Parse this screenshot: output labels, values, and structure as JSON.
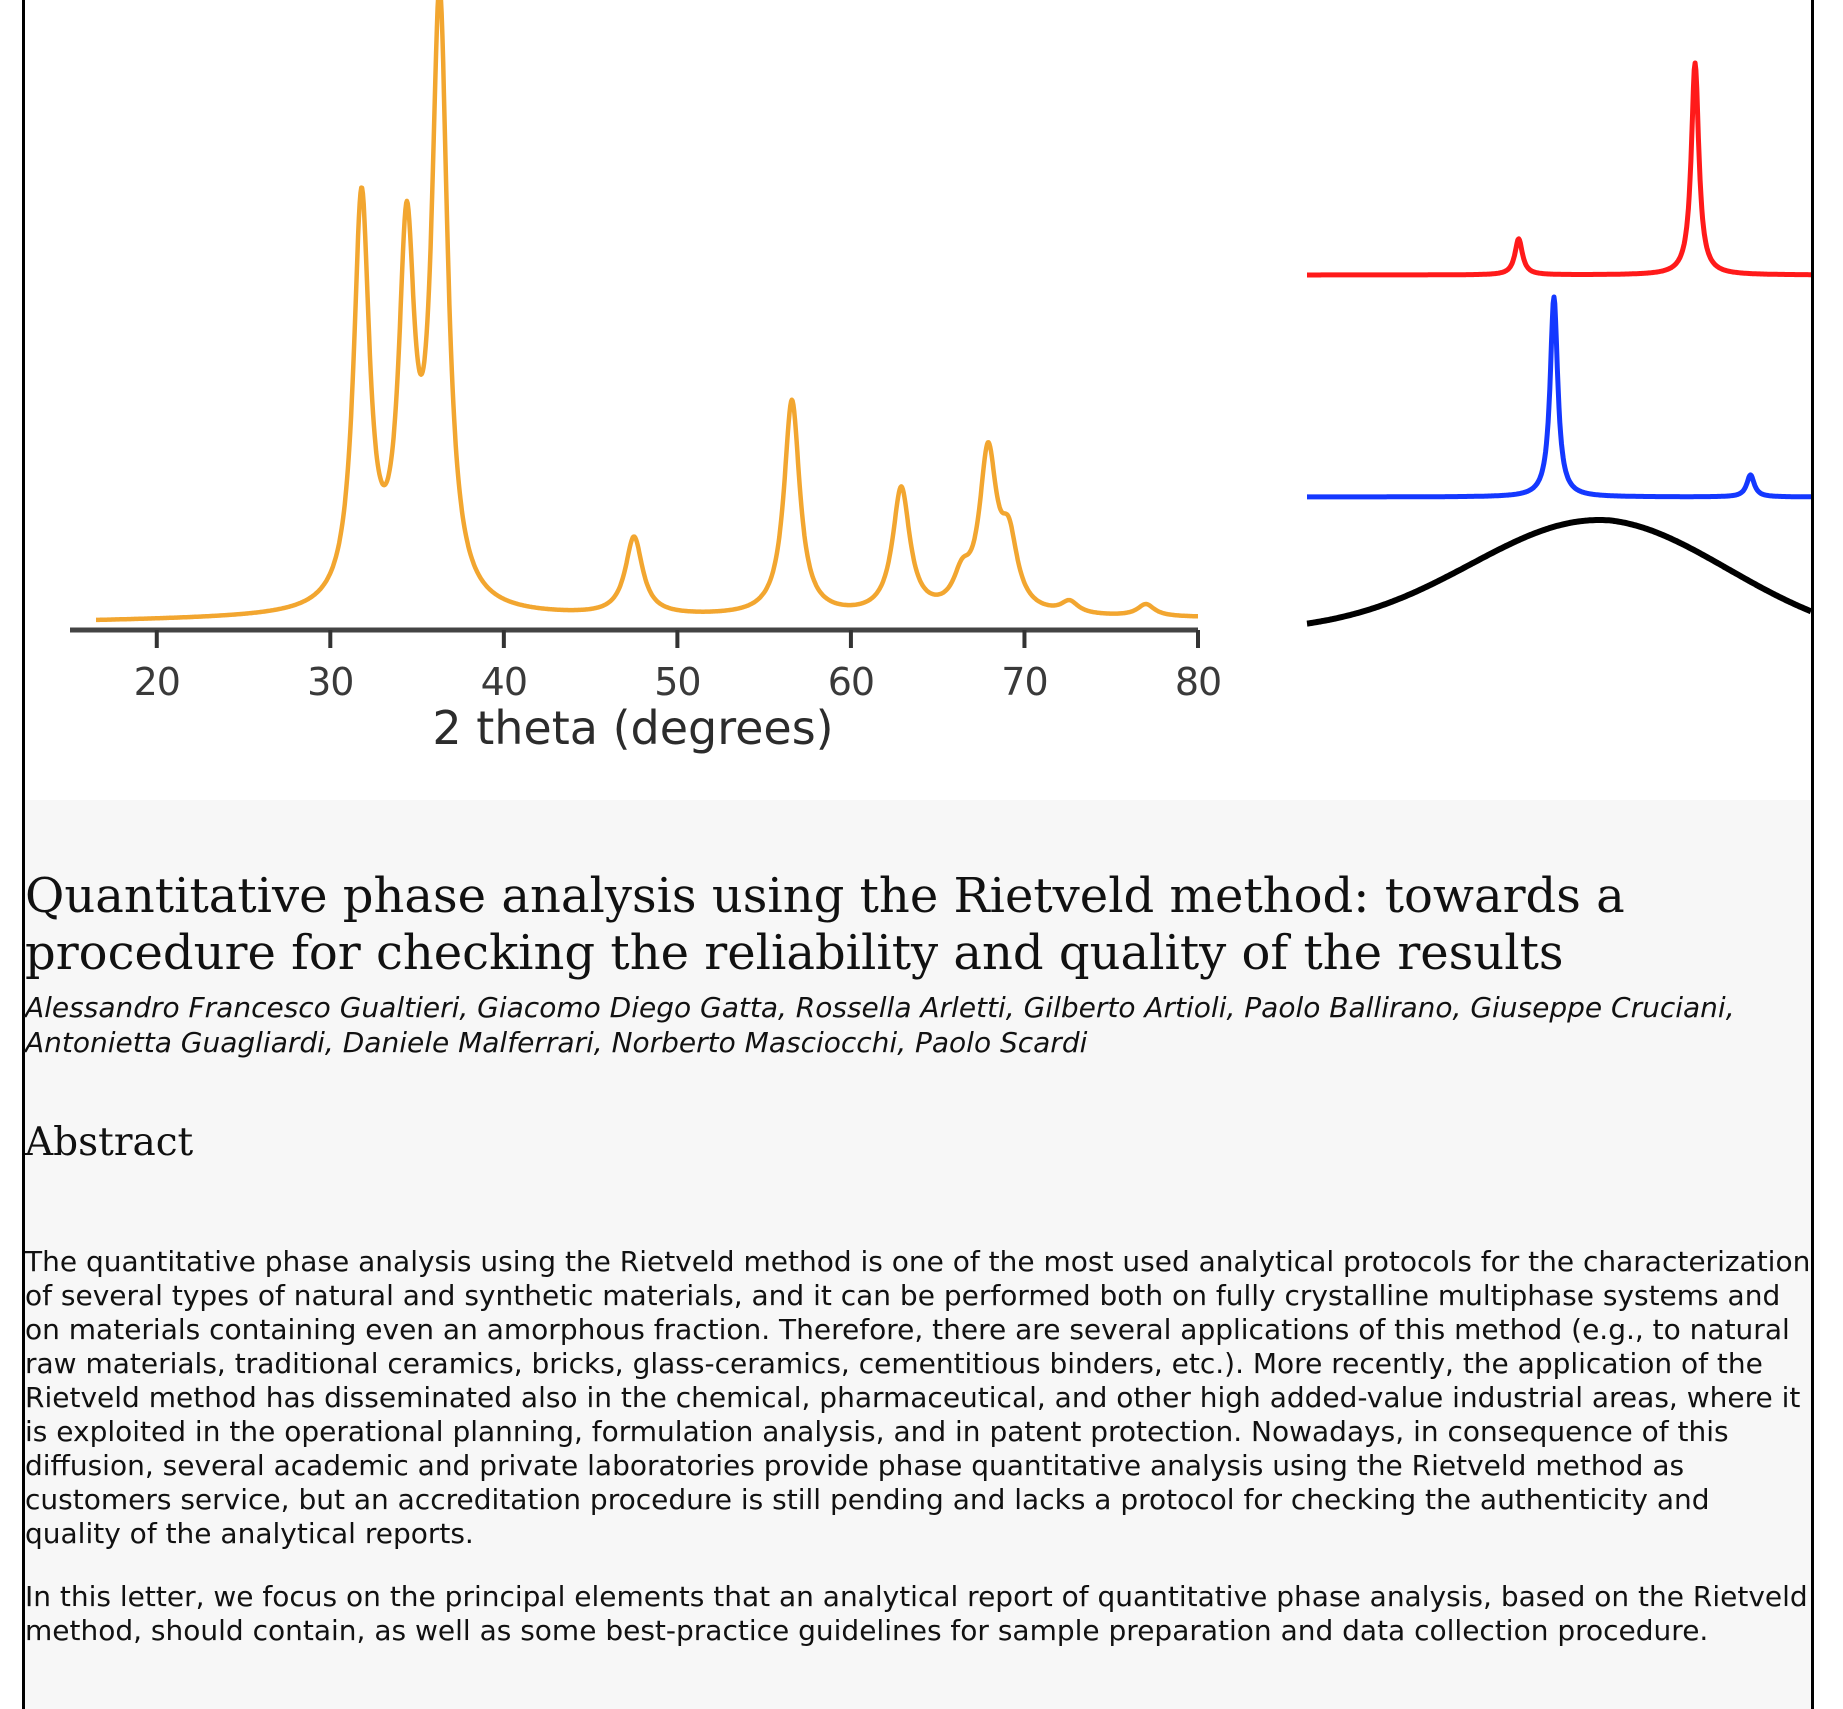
{
  "chart_data": [
    {
      "type": "line",
      "xlabel": "2 theta (degrees)",
      "ylabel": "",
      "xlim": [
        15,
        80
      ],
      "x_ticks": [
        "20",
        "30",
        "40",
        "50",
        "60",
        "70",
        "80"
      ],
      "series": [
        {
          "color": "#f2a630",
          "peaks": [
            {
              "x": 31.8,
              "intensity": 0.68
            },
            {
              "x": 34.4,
              "intensity": 0.59
            },
            {
              "x": 36.3,
              "intensity": 1.0
            },
            {
              "x": 47.5,
              "intensity": 0.13
            },
            {
              "x": 56.6,
              "intensity": 0.36
            },
            {
              "x": 62.9,
              "intensity": 0.21
            },
            {
              "x": 66.4,
              "intensity": 0.05
            },
            {
              "x": 67.9,
              "intensity": 0.26
            },
            {
              "x": 69.1,
              "intensity": 0.11
            },
            {
              "x": 72.6,
              "intensity": 0.02
            },
            {
              "x": 77.0,
              "intensity": 0.02
            }
          ]
        }
      ]
    },
    {
      "type": "line",
      "series": [
        {
          "color": "#ff1a1a",
          "peaks": [
            {
              "x": 0.42,
              "intensity": 0.17
            },
            {
              "x": 0.77,
              "intensity": 1.0
            }
          ]
        },
        {
          "color": "#1438ff",
          "peaks": [
            {
              "x": 0.49,
              "intensity": 1.0
            },
            {
              "x": 0.88,
              "intensity": 0.11
            }
          ]
        },
        {
          "color": "#000000",
          "shape": "broad amorphous hump"
        }
      ]
    }
  ],
  "article": {
    "title": "Quantitative phase analysis using the Rietveld method: towards a procedure for checking the reliability and quality of the results",
    "authors": "Alessandro Francesco Gualtieri, Giacomo Diego Gatta, Rossella Arletti, Gilberto Artioli, Paolo Ballirano, Giuseppe Cruciani, Antonietta Guagliardi, Daniele Malferrari, Norberto Masciocchi, Paolo Scardi",
    "abstract_heading": "Abstract",
    "abstract_paragraphs": [
      "The quantitative phase analysis using the Rietveld method is one of the most used analytical protocols for the characterization of several types of natural and synthetic materials, and it can be performed both on fully crystalline multiphase systems and on materials containing even an amorphous fraction. Therefore, there are several applications of this method (e.g., to natural raw materials, traditional ceramics, bricks, glass-ceramics, cementitious binders, etc.). More recently, the application of the Rietveld method has disseminated also in the chemical, pharmaceutical, and other high added-value industrial areas, where it is exploited in the operational planning, formulation analysis, and in patent protection. Nowadays, in consequence of this diffusion, several academic and private laboratories provide phase quantitative analysis using the Rietveld method as customers service, but an accreditation procedure is still pending and lacks a protocol for checking the authenticity and quality of the analytical reports.",
      "In this letter, we focus on the principal elements that an analytical report of quantitative phase analysis, based on the Rietveld method, should contain, as well as some best-practice guidelines for sample preparation and data collection procedure."
    ]
  }
}
